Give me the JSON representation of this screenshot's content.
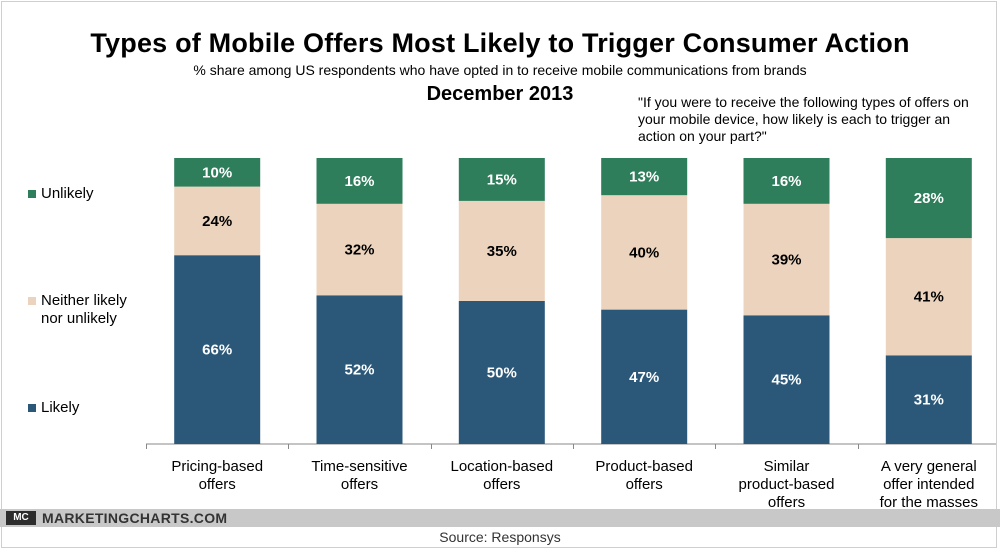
{
  "colors": {
    "likely": "#2b5879",
    "neither": "#ecd3bd",
    "unlikely": "#2e7d5b",
    "axis": "#888888"
  },
  "chart_data": {
    "type": "bar",
    "stacked": true,
    "title": "Types of Mobile Offers Most Likely to Trigger Consumer Action",
    "subtitle": "% share among US respondents who have opted in to receive mobile communications from brands",
    "date": "December 2013",
    "question": "\"If you were to receive the following types of offers on your mobile device, how likely is each to trigger an action on your part?\"",
    "categories": [
      "Pricing-based offers",
      "Time-sensitive offers",
      "Location-based offers",
      "Product-based offers",
      "Similar product-based offers",
      "A very general offer intended for the masses"
    ],
    "category_lines": [
      [
        "Pricing-based",
        "offers"
      ],
      [
        "Time-sensitive",
        "offers"
      ],
      [
        "Location-based",
        "offers"
      ],
      [
        "Product-based",
        "offers"
      ],
      [
        "Similar",
        "product-based",
        "offers"
      ],
      [
        "A very general",
        "offer intended",
        "for the masses"
      ]
    ],
    "series": [
      {
        "name": "Likely",
        "color_key": "likely",
        "values": [
          66,
          52,
          50,
          47,
          45,
          31
        ],
        "labels": [
          "66%",
          "52%",
          "50%",
          "47%",
          "45%",
          "31%"
        ]
      },
      {
        "name": "Neither likely nor unlikely",
        "color_key": "neither",
        "values": [
          24,
          32,
          35,
          40,
          39,
          41
        ],
        "labels": [
          "24%",
          "32%",
          "35%",
          "40%",
          "39%",
          "41%"
        ]
      },
      {
        "name": "Unlikely",
        "color_key": "unlikely",
        "values": [
          10,
          16,
          15,
          13,
          16,
          28
        ],
        "labels": [
          "10%",
          "16%",
          "15%",
          "13%",
          "16%",
          "28%"
        ]
      }
    ],
    "ylim": [
      0,
      100
    ],
    "legend": {
      "position": "left",
      "unlikely": "Unlikely",
      "neither_line1": "Neither likely",
      "neither_line2": "nor unlikely",
      "likely": "Likely"
    },
    "source": "Source: Responsys"
  },
  "branding": {
    "logo_text": "MC",
    "site": "MARKETINGCHARTS.COM"
  }
}
